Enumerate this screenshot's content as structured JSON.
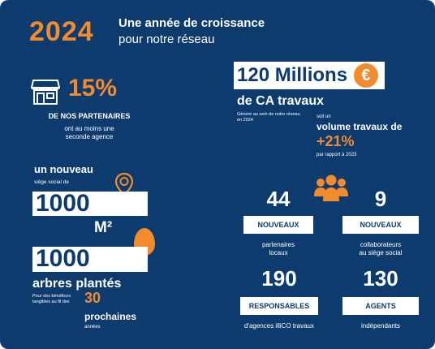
{
  "colors": {
    "background": "#0d3b6e",
    "accent": "#f28a2e",
    "box": "#ffffff"
  },
  "icons": [
    "store-icon",
    "location-pin-icon",
    "tree-icon",
    "people-group-icon",
    "euro-icon"
  ],
  "header": {
    "year": "2024",
    "title": "Une année de croissance",
    "subtitle": "pour notre réseau"
  },
  "partners": {
    "percent": "15%",
    "label": "DE NOS PARTENAIRES",
    "desc_line1": "ont au moins une",
    "desc_line2": "seconde agence"
  },
  "siege": {
    "title": "un nouveau",
    "sub": "siège social de",
    "value": "1000",
    "unit": "M²"
  },
  "trees": {
    "value": "1000",
    "label": "arbres plantés",
    "note": "Pour des bénéfices tangibles au fil des",
    "years": "30",
    "years_label": "prochaines",
    "years_sub": "années"
  },
  "revenue": {
    "amount": "120 Millions",
    "currency": "€",
    "label": "de CA travaux",
    "note": "Généré au sein de notre réseau en 2024",
    "soit": "soit un",
    "volume": "volume travaux de",
    "growth": "+21%",
    "compare": "par rapport à 2023"
  },
  "stats": [
    {
      "number": "44",
      "badge": "NOUVEAUX",
      "line1": "partenaires",
      "line2": "locaux"
    },
    {
      "number": "9",
      "badge": "NOUVEAUX",
      "line1": "collaborateurs",
      "line2": "au siège social"
    },
    {
      "number": "190",
      "badge": "RESPONSABLES",
      "line1": "d'agences illiCO travaux",
      "line2": ""
    },
    {
      "number": "130",
      "badge": "AGENTS",
      "line1": "indépendants",
      "line2": ""
    }
  ]
}
